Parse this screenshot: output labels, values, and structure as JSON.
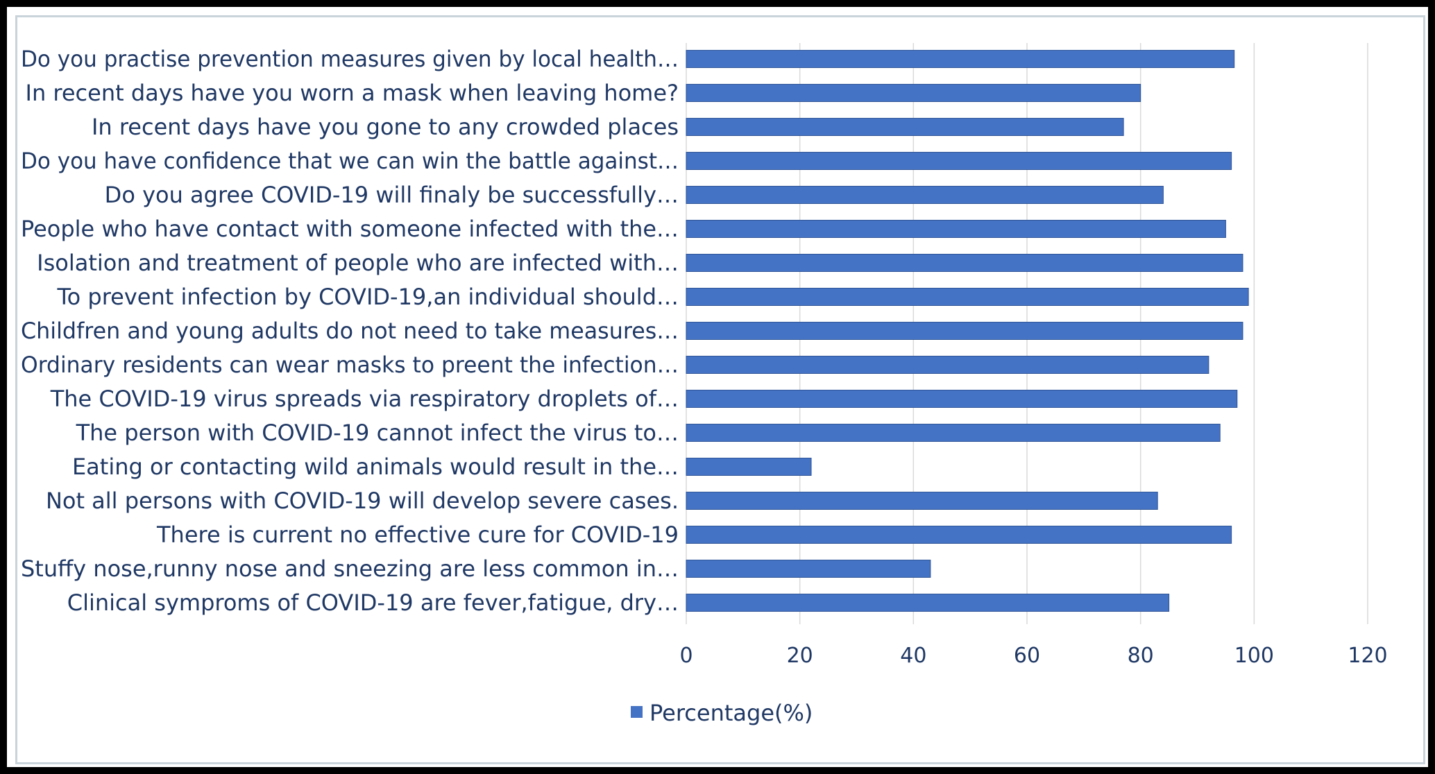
{
  "chart_data": {
    "type": "bar",
    "orientation": "horizontal",
    "categories": [
      "Do you practise prevention measures given by local health…",
      "In recent days have you worn a mask when leaving home?",
      "In recent days have you gone to any crowded places",
      "Do you have confidence that we can win the battle against…",
      "Do you agree COVID-19 will finaly be successfully…",
      "People who have contact with someone infected with the…",
      "Isolation and treatment of people who are infected with…",
      "To prevent infection by COVID-19,an individual should…",
      "Childfren and young adults do not need to take measures…",
      "Ordinary residents can wear masks to preent the infection…",
      "The COVID-19 virus spreads via respiratory droplets of…",
      "The person with COVID-19 cannot infect the virus to…",
      "Eating or contacting wild animals would result in the…",
      "Not all persons with COVID-19 will develop severe cases.",
      "There is current no effective cure for COVID-19",
      "Stuffy nose,runny nose and sneezing are less common in…",
      "Clinical symproms of COVID-19 are fever,fatigue, dry…"
    ],
    "series": [
      {
        "name": "Percentage(%)",
        "values": [
          96.5,
          80,
          77,
          96,
          84,
          95,
          98,
          99,
          98,
          92,
          97,
          94,
          22,
          83,
          96,
          43,
          85
        ],
        "color": "#4472c4"
      }
    ],
    "xlim": [
      0,
      120
    ],
    "xticks": [
      0,
      20,
      40,
      60,
      80,
      100,
      120
    ],
    "xtick_labels": [
      "0",
      "20",
      "40",
      "60",
      "80",
      "100",
      "120"
    ],
    "title": "",
    "xlabel": "",
    "ylabel": "",
    "grid": "vertical",
    "legend": "bottom"
  },
  "colors": {
    "bar": "#4472c4",
    "bar_edge": "#2f5597",
    "grid": "#d9d9d9",
    "text": "#1f3864"
  }
}
